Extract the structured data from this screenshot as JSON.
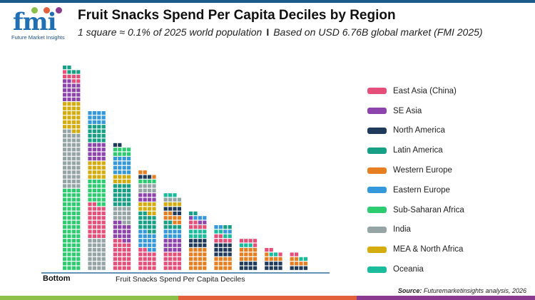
{
  "header": {
    "logo_text": "fmi",
    "logo_subtitle": "Future Market Insights",
    "title": "Fruit Snacks Spend Per Capita Deciles by Region",
    "subtitle_left": "1 square ≈ 0.1% of 2025 world population",
    "subtitle_separator": "I",
    "subtitle_right": "Based on USD 6.76B global market (FMI 2025)"
  },
  "chart_data": {
    "type": "waffle-stacked-bar",
    "title": "Fruit Snacks Spend Per Capita Deciles by Region",
    "xlabel": "Fruit Snacks Spend Per Capita Deciles",
    "x_start_label": "Bottom",
    "unit": "squares (1 square ≈ 0.1% of 2025 world population)",
    "columns_per_bar": 4,
    "legend_placement": "right",
    "series": [
      {
        "name": "East Asia (China)",
        "color": "#e5507a"
      },
      {
        "name": "SE Asia",
        "color": "#8e44ad"
      },
      {
        "name": "North America",
        "color": "#1f3a5a"
      },
      {
        "name": "Latin America",
        "color": "#17a085"
      },
      {
        "name": "Western Europe",
        "color": "#e67e22"
      },
      {
        "name": "Eastern Europe",
        "color": "#3498db"
      },
      {
        "name": "Sub-Saharan Africa",
        "color": "#2ecc71"
      },
      {
        "name": "India",
        "color": "#95a5a6"
      },
      {
        "name": "MEA & North Africa",
        "color": "#d4ac0d"
      },
      {
        "name": "Oceania",
        "color": "#1abc9c"
      }
    ],
    "deciles": [
      [
        [
          "Sub-Saharan Africa",
          72
        ],
        [
          "India",
          50
        ],
        [
          "MEA & North Africa",
          26
        ],
        [
          "SE Asia",
          18
        ],
        [
          "East Asia (China)",
          7
        ],
        [
          "Latin America",
          5
        ]
      ],
      [
        [
          "India",
          28
        ],
        [
          "East Asia (China)",
          30
        ],
        [
          "Sub-Saharan Africa",
          22
        ],
        [
          "MEA & North Africa",
          16
        ],
        [
          "SE Asia",
          16
        ],
        [
          "Latin America",
          16
        ],
        [
          "Eastern Europe",
          12
        ]
      ],
      [
        [
          "East Asia (China)",
          26
        ],
        [
          "SE Asia",
          16
        ],
        [
          "India",
          14
        ],
        [
          "Latin America",
          20
        ],
        [
          "MEA & North Africa",
          8
        ],
        [
          "Eastern Europe",
          16
        ],
        [
          "Sub-Saharan Africa",
          8
        ],
        [
          "North America",
          2
        ]
      ],
      [
        [
          "East Asia (China)",
          18
        ],
        [
          "Eastern Europe",
          16
        ],
        [
          "Latin America",
          16
        ],
        [
          "MEA & North Africa",
          10
        ],
        [
          "SE Asia",
          8
        ],
        [
          "India",
          8
        ],
        [
          "Sub-Saharan Africa",
          4
        ],
        [
          "North America",
          3
        ],
        [
          "Western Europe",
          3
        ]
      ],
      [
        [
          "East Asia (China)",
          16
        ],
        [
          "SE Asia",
          12
        ],
        [
          "Eastern Europe",
          8
        ],
        [
          "Latin America",
          6
        ],
        [
          "Western Europe",
          8
        ],
        [
          "North America",
          6
        ],
        [
          "MEA & North Africa",
          4
        ],
        [
          "India",
          4
        ],
        [
          "Oceania",
          3
        ]
      ],
      [
        [
          "Western Europe",
          20
        ],
        [
          "North America",
          8
        ],
        [
          "Oceania",
          8
        ],
        [
          "East Asia (China)",
          6
        ],
        [
          "SE Asia",
          3
        ],
        [
          "Eastern Europe",
          3
        ],
        [
          "Latin America",
          2
        ]
      ],
      [
        [
          "Western Europe",
          12
        ],
        [
          "North America",
          12
        ],
        [
          "East Asia (China)",
          6
        ],
        [
          "Oceania",
          4
        ],
        [
          "Eastern Europe",
          4
        ],
        [
          "Latin America",
          2
        ]
      ],
      [
        [
          "North America",
          8
        ],
        [
          "Western Europe",
          12
        ],
        [
          "Oceania",
          3
        ],
        [
          "East Asia (China)",
          5
        ]
      ],
      [
        [
          "North America",
          8
        ],
        [
          "Western Europe",
          5
        ],
        [
          "Oceania",
          2
        ],
        [
          "East Asia (China)",
          3
        ]
      ],
      [
        [
          "North America",
          4
        ],
        [
          "Western Europe",
          6
        ],
        [
          "Oceania",
          2
        ],
        [
          "East Asia (China)",
          2
        ]
      ]
    ]
  },
  "source": {
    "label": "Source:",
    "text": "Futuremarketinsights analysis, 2026"
  },
  "colors": {
    "top_bar": "#1d5a8c",
    "axis": "#2f6e9e",
    "footer": [
      "#8dc04b",
      "#e2603a",
      "#8a3b8f"
    ]
  }
}
